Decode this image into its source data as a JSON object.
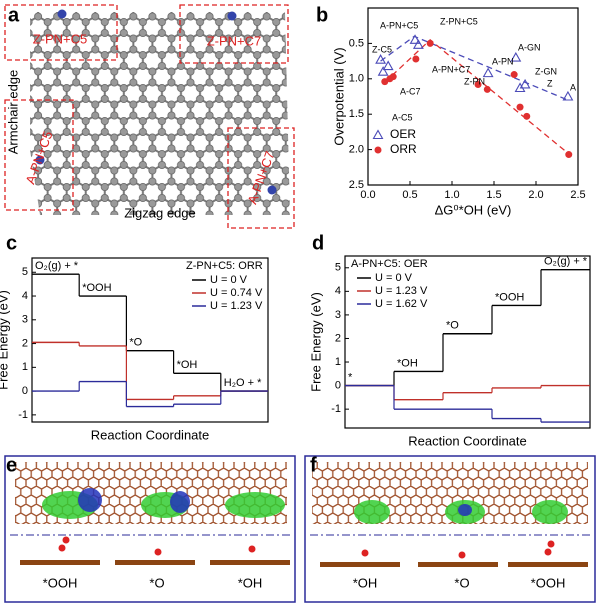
{
  "panel_labels": [
    "a",
    "b",
    "c",
    "d",
    "e",
    "f"
  ],
  "panel_a": {
    "site_labels": [
      "Z-PN+C5",
      "Z-PN+C7",
      "A-PN+C5",
      "A-PN+C7"
    ],
    "edge_labels": [
      "Armchair edge",
      "Zigzag edge"
    ]
  },
  "chart_data": [
    {
      "type": "scatter",
      "x_label": "ΔG⁰*OH (eV)",
      "y_label": "Overpotential (V)",
      "xlim": [
        0,
        2.5
      ],
      "ylim": [
        2.5,
        0
      ],
      "xticks": [
        {
          "value": 0,
          "label": "0.0"
        },
        0.5,
        {
          "value": 1,
          "label": "1.0"
        },
        1.5,
        {
          "value": 2,
          "label": "2.0"
        },
        2.5
      ],
      "yticks": [
        0.5,
        {
          "value": 1,
          "label": "1.0"
        },
        1.5,
        {
          "value": 2,
          "label": "2.0"
        },
        2.5
      ],
      "legend": "lower-left",
      "series": [
        {
          "name": "OER",
          "color": "#4b4bb8",
          "marker": "triangle",
          "x": [
            0.15,
            0.18,
            0.24,
            0.56,
            0.6,
            1.43,
            1.76,
            1.87,
            1.81,
            2.38
          ],
          "values": [
            0.73,
            0.9,
            0.82,
            0.45,
            0.52,
            0.92,
            0.7,
            1.08,
            1.13,
            1.25
          ]
        },
        {
          "name": "ORR",
          "color": "#e03030",
          "marker": "circle",
          "x": [
            0.2,
            0.26,
            0.3,
            0.74,
            0.57,
            1.31,
            1.42,
            1.74,
            1.81,
            1.89,
            2.39
          ],
          "values": [
            1.04,
            1.0,
            0.97,
            0.5,
            0.72,
            1.08,
            1.15,
            0.94,
            1.4,
            1.53,
            2.07
          ]
        }
      ],
      "fits": [
        {
          "color": "#4b4bb8",
          "x": [
            0.15,
            0.55,
            2.38
          ],
          "y": [
            0.75,
            0.4,
            1.3
          ]
        },
        {
          "color": "#e03030",
          "x": [
            0.2,
            0.74,
            2.4
          ],
          "y": [
            1.05,
            0.45,
            2.07
          ]
        }
      ],
      "annotations": [
        {
          "text": "A-PN+C5",
          "color": "#4b4bb8"
        },
        {
          "text": "Z-PN+C5",
          "color": "#e03030"
        },
        {
          "text": "Z-C5",
          "color": "#000000"
        },
        {
          "text": "A-C7",
          "color": "#000000"
        },
        {
          "text": "A-C5",
          "color": "#000000"
        },
        {
          "text": "A-PN+C7",
          "color": "#000000"
        },
        {
          "text": "Z-PN",
          "color": "#000000"
        },
        {
          "text": "A-PN",
          "color": "#000000"
        },
        {
          "text": "A-GN",
          "color": "#000000"
        },
        {
          "text": "Z-GN",
          "color": "#000000"
        },
        {
          "text": "Z",
          "color": "#000000"
        },
        {
          "text": "A",
          "color": "#000000"
        }
      ]
    },
    {
      "type": "step",
      "title": "Z-PN+C5: ORR",
      "y_label": "Free Energy (eV)",
      "x_label": "Reaction Coordinate",
      "categories": [
        "O₂(g) + *",
        "*OOH",
        "*O",
        "*OH",
        "H₂O + *"
      ],
      "ylim": [
        -1.3,
        5.6
      ],
      "yticks": [
        -1,
        0,
        1,
        2,
        3,
        4,
        5
      ],
      "legend": "upper-right",
      "series": [
        {
          "name": "U = 0 V",
          "color": "#000000",
          "values": [
            4.92,
            4.0,
            1.7,
            0.75,
            0
          ]
        },
        {
          "name": "U = 0.74 V",
          "color": "#c0302a",
          "values": [
            2.05,
            1.9,
            -0.35,
            -0.2,
            0
          ]
        },
        {
          "name": "U = 1.23 V",
          "color": "#2b2b9a",
          "values": [
            0,
            0.4,
            -0.65,
            -0.55,
            0
          ]
        }
      ]
    },
    {
      "type": "step",
      "title": "A-PN+C5: OER",
      "y_label": "Free Energy (eV)",
      "x_label": "Reaction Coordinate",
      "categories": [
        "*",
        "*OH",
        "*O",
        "*OOH",
        "O₂(g) + *"
      ],
      "ylim": [
        -1.8,
        5.5
      ],
      "yticks": [
        -1,
        0,
        1,
        2,
        3,
        4,
        5
      ],
      "legend": "upper-left",
      "series": [
        {
          "name": "U = 0 V",
          "color": "#000000",
          "values": [
            0,
            0.6,
            2.2,
            3.4,
            4.92
          ]
        },
        {
          "name": "U = 1.23 V",
          "color": "#c0302a",
          "values": [
            0,
            -0.6,
            -0.3,
            -0.1,
            0
          ]
        },
        {
          "name": "U = 1.62 V",
          "color": "#2b2b9a",
          "values": [
            0,
            -1.0,
            -1.0,
            -1.4,
            -1.55
          ]
        }
      ]
    }
  ],
  "panel_e": {
    "labels": [
      "*OOH",
      "*O",
      "*OH"
    ]
  },
  "panel_f": {
    "labels": [
      "*OH",
      "*O",
      "*OOH"
    ]
  }
}
